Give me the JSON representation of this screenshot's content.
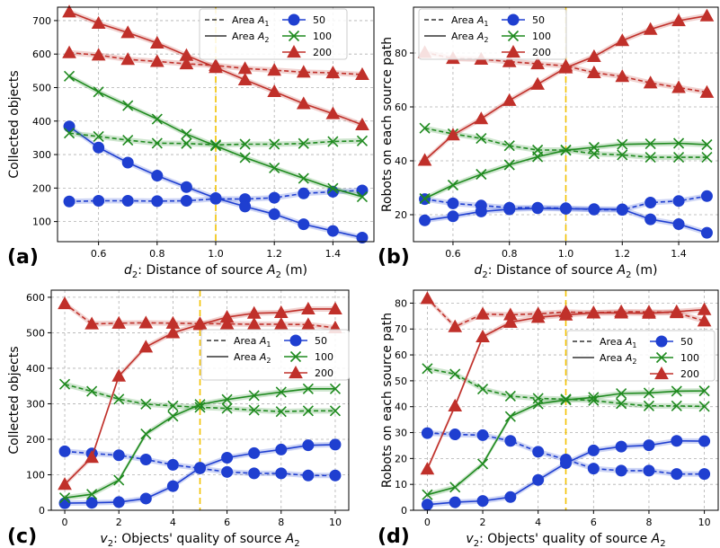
{
  "chart_data": [
    {
      "id": "a",
      "panel_label": "(a)",
      "type": "line",
      "xlabel_pre": "d",
      "xlabel_sub": "2",
      "xlabel_mid": ": Distance of source ",
      "xlabel_var": "A",
      "xlabel_var_sub": "2",
      "xlabel_post": " (m)",
      "ylabel": "Collected objects",
      "xlim": [
        0.46,
        1.54
      ],
      "ylim": [
        40,
        740
      ],
      "xticks": [
        0.6,
        0.8,
        1.0,
        1.2,
        1.4
      ],
      "xtick_labels": [
        "0.6",
        "0.8",
        "1.0",
        "1.2",
        "1.4"
      ],
      "yticks": [
        100,
        200,
        300,
        400,
        500,
        600,
        700
      ],
      "ytick_labels": [
        "100",
        "200",
        "300",
        "400",
        "500",
        "600",
        "700"
      ],
      "vline": 1.0,
      "legend": {
        "placement": "top-right",
        "style_entries": [
          "Area A1",
          "Area A2"
        ],
        "series_entries": [
          "50",
          "100",
          "200"
        ]
      },
      "x": [
        0.5,
        0.6,
        0.7,
        0.8,
        0.9,
        1.0,
        1.1,
        1.2,
        1.3,
        1.4,
        1.5
      ],
      "series": [
        {
          "name": "50",
          "area": "A1",
          "color": "#1f3fd0",
          "marker": "circle",
          "values": [
            160,
            162,
            162,
            161,
            162,
            168,
            167,
            171,
            184,
            189,
            193
          ]
        },
        {
          "name": "50",
          "area": "A2",
          "color": "#1f3fd0",
          "marker": "circle",
          "values": [
            384,
            321,
            276,
            237,
            203,
            170,
            145,
            122,
            92,
            72,
            52
          ]
        },
        {
          "name": "100",
          "area": "A1",
          "color": "#1f8a1f",
          "marker": "x",
          "values": [
            364,
            354,
            343,
            334,
            333,
            329,
            331,
            331,
            333,
            339,
            341
          ]
        },
        {
          "name": "100",
          "area": "A2",
          "color": "#1f8a1f",
          "marker": "x",
          "values": [
            534,
            487,
            446,
            406,
            361,
            326,
            291,
            260,
            229,
            199,
            174
          ]
        },
        {
          "name": "200",
          "area": "A1",
          "color": "#c0302a",
          "marker": "triangle",
          "values": [
            604,
            597,
            584,
            578,
            571,
            566,
            557,
            552,
            546,
            544,
            539
          ]
        },
        {
          "name": "200",
          "area": "A2",
          "color": "#c0302a",
          "marker": "triangle",
          "values": [
            726,
            692,
            664,
            633,
            596,
            560,
            523,
            488,
            452,
            422,
            389
          ]
        }
      ]
    },
    {
      "id": "b",
      "panel_label": "(b)",
      "type": "line",
      "xlabel_pre": "d",
      "xlabel_sub": "2",
      "xlabel_mid": ": Distance of source ",
      "xlabel_var": "A",
      "xlabel_var_sub": "2",
      "xlabel_post": " (m)",
      "ylabel": "Robots on each source path",
      "xlim": [
        0.46,
        1.54
      ],
      "ylim": [
        10,
        97
      ],
      "xticks": [
        0.6,
        0.8,
        1.0,
        1.2,
        1.4
      ],
      "xtick_labels": [
        "0.6",
        "0.8",
        "1.0",
        "1.2",
        "1.4"
      ],
      "yticks": [
        20,
        40,
        60,
        80
      ],
      "ytick_labels": [
        "20",
        "40",
        "60",
        "80"
      ],
      "vline": 1.0,
      "legend": {
        "placement": "top",
        "style_entries": [
          "Area A1",
          "Area A2"
        ],
        "series_entries": [
          "50",
          "100",
          "200"
        ]
      },
      "x": [
        0.5,
        0.6,
        0.7,
        0.8,
        0.9,
        1.0,
        1.1,
        1.2,
        1.3,
        1.4,
        1.5
      ],
      "series": [
        {
          "name": "50",
          "area": "A1",
          "color": "#1f3fd0",
          "marker": "circle",
          "values": [
            25.8,
            24.2,
            23.4,
            22.6,
            22.6,
            22.4,
            21.9,
            21.8,
            24.5,
            25.1,
            26.9
          ]
        },
        {
          "name": "50",
          "area": "A2",
          "color": "#1f3fd0",
          "marker": "circle",
          "values": [
            17.9,
            19.4,
            21.2,
            22.0,
            22.4,
            22.2,
            22.1,
            22.0,
            18.3,
            16.5,
            13.3
          ]
        },
        {
          "name": "100",
          "area": "A1",
          "color": "#1f8a1f",
          "marker": "x",
          "values": [
            52.1,
            50.0,
            48.3,
            45.6,
            44.0,
            44.0,
            42.6,
            42.2,
            41.3,
            41.3,
            41.3
          ]
        },
        {
          "name": "100",
          "area": "A2",
          "color": "#1f8a1f",
          "marker": "x",
          "values": [
            26.0,
            31.0,
            35.0,
            38.5,
            41.5,
            43.9,
            45.0,
            46.1,
            46.3,
            46.5,
            46.0
          ]
        },
        {
          "name": "200",
          "area": "A1",
          "color": "#c0302a",
          "marker": "triangle",
          "values": [
            80.2,
            78.0,
            77.7,
            76.8,
            76.0,
            75.2,
            72.7,
            71.3,
            68.9,
            67.2,
            65.4
          ]
        },
        {
          "name": "200",
          "area": "A2",
          "color": "#c0302a",
          "marker": "triangle",
          "values": [
            40.2,
            49.6,
            55.6,
            62.4,
            68.4,
            74.5,
            78.7,
            84.6,
            88.8,
            92.0,
            93.8
          ]
        }
      ]
    },
    {
      "id": "c",
      "panel_label": "(c)",
      "type": "line",
      "xlabel_pre": "v",
      "xlabel_sub": "2",
      "xlabel_mid": ": Objects' quality of source ",
      "xlabel_var": "A",
      "xlabel_var_sub": "2",
      "xlabel_post": "",
      "ylabel": "Collected objects",
      "xlim": [
        -0.5,
        10.5
      ],
      "ylim": [
        0,
        620
      ],
      "xticks": [
        0,
        2,
        4,
        6,
        8,
        10
      ],
      "xtick_labels": [
        "0",
        "2",
        "4",
        "6",
        "8",
        "10"
      ],
      "yticks": [
        0,
        100,
        200,
        300,
        400,
        500,
        600
      ],
      "ytick_labels": [
        "0",
        "100",
        "200",
        "300",
        "400",
        "500",
        "600"
      ],
      "vline": 5,
      "legend": {
        "placement": "center-right",
        "style_entries": [
          "Area A1",
          "Area A2"
        ],
        "series_entries": [
          "50",
          "100",
          "200"
        ]
      },
      "x": [
        0,
        1,
        2,
        3,
        4,
        5,
        6,
        7,
        8,
        9,
        10
      ],
      "series": [
        {
          "name": "50",
          "area": "A1",
          "color": "#1f3fd0",
          "marker": "circle",
          "values": [
            166,
            160,
            155,
            143,
            128,
            118,
            108,
            104,
            104,
            98,
            98
          ]
        },
        {
          "name": "50",
          "area": "A2",
          "color": "#1f3fd0",
          "marker": "circle",
          "values": [
            20,
            21,
            23,
            33,
            68,
            120,
            148,
            161,
            171,
            183,
            185
          ]
        },
        {
          "name": "100",
          "area": "A1",
          "color": "#1f8a1f",
          "marker": "x",
          "values": [
            355,
            335,
            313,
            299,
            294,
            290,
            287,
            282,
            278,
            280,
            280
          ]
        },
        {
          "name": "100",
          "area": "A2",
          "color": "#1f8a1f",
          "marker": "x",
          "values": [
            35,
            45,
            85,
            215,
            265,
            298,
            312,
            323,
            333,
            342,
            342
          ]
        },
        {
          "name": "200",
          "area": "A1",
          "color": "#c0302a",
          "marker": "triangle",
          "values": [
            582,
            525,
            527,
            528,
            527,
            526,
            525,
            524,
            524,
            523,
            514
          ]
        },
        {
          "name": "200",
          "area": "A2",
          "color": "#c0302a",
          "marker": "triangle",
          "values": [
            73,
            149,
            378,
            460,
            500,
            523,
            544,
            555,
            557,
            567,
            567
          ]
        }
      ]
    },
    {
      "id": "d",
      "panel_label": "(d)",
      "type": "line",
      "xlabel_pre": "v",
      "xlabel_sub": "2",
      "xlabel_mid": ": Objects' quality of source ",
      "xlabel_var": "A",
      "xlabel_var_sub": "2",
      "xlabel_post": "",
      "ylabel": "Robots on each source path",
      "xlim": [
        -0.5,
        10.5
      ],
      "ylim": [
        0,
        85
      ],
      "xticks": [
        0,
        2,
        4,
        6,
        8,
        10
      ],
      "xtick_labels": [
        "0",
        "2",
        "4",
        "6",
        "8",
        "10"
      ],
      "yticks": [
        0,
        10,
        20,
        30,
        40,
        50,
        60,
        70,
        80
      ],
      "ytick_labels": [
        "0",
        "10",
        "20",
        "30",
        "40",
        "50",
        "60",
        "70",
        "80"
      ],
      "vline": 5,
      "legend": {
        "placement": "center-right",
        "style_entries": [
          "Area A1",
          "Area A2"
        ],
        "series_entries": [
          "50",
          "100",
          "200"
        ]
      },
      "x": [
        0,
        1,
        2,
        3,
        4,
        5,
        6,
        7,
        8,
        9,
        10
      ],
      "series": [
        {
          "name": "50",
          "area": "A1",
          "color": "#1f3fd0",
          "marker": "circle",
          "values": [
            29.8,
            29.3,
            29.0,
            26.8,
            22.6,
            19.6,
            16.1,
            15.3,
            15.3,
            14.0,
            14.0
          ]
        },
        {
          "name": "50",
          "area": "A2",
          "color": "#1f3fd0",
          "marker": "circle",
          "values": [
            2.2,
            3.1,
            3.6,
            5.1,
            11.7,
            18.2,
            23.1,
            24.6,
            25.1,
            26.8,
            26.7
          ]
        },
        {
          "name": "100",
          "area": "A1",
          "color": "#1f8a1f",
          "marker": "x",
          "values": [
            54.7,
            52.6,
            46.8,
            44.1,
            43.2,
            42.9,
            42.4,
            41.2,
            40.3,
            40.3,
            40.1
          ]
        },
        {
          "name": "100",
          "area": "A2",
          "color": "#1f8a1f",
          "marker": "x",
          "values": [
            6.0,
            8.9,
            17.9,
            36.2,
            41.1,
            42.6,
            43.6,
            45.1,
            45.3,
            46.0,
            46.1
          ]
        },
        {
          "name": "200",
          "area": "A1",
          "color": "#c0302a",
          "marker": "triangle",
          "values": [
            81.8,
            70.9,
            75.8,
            75.5,
            75.9,
            76.6,
            76.2,
            76.7,
            76.6,
            76.3,
            73.1
          ]
        },
        {
          "name": "200",
          "area": "A2",
          "color": "#c0302a",
          "marker": "triangle",
          "values": [
            15.9,
            40.3,
            67.0,
            72.6,
            74.5,
            75.4,
            76.3,
            76.2,
            76.1,
            76.7,
            77.5
          ]
        }
      ]
    }
  ]
}
